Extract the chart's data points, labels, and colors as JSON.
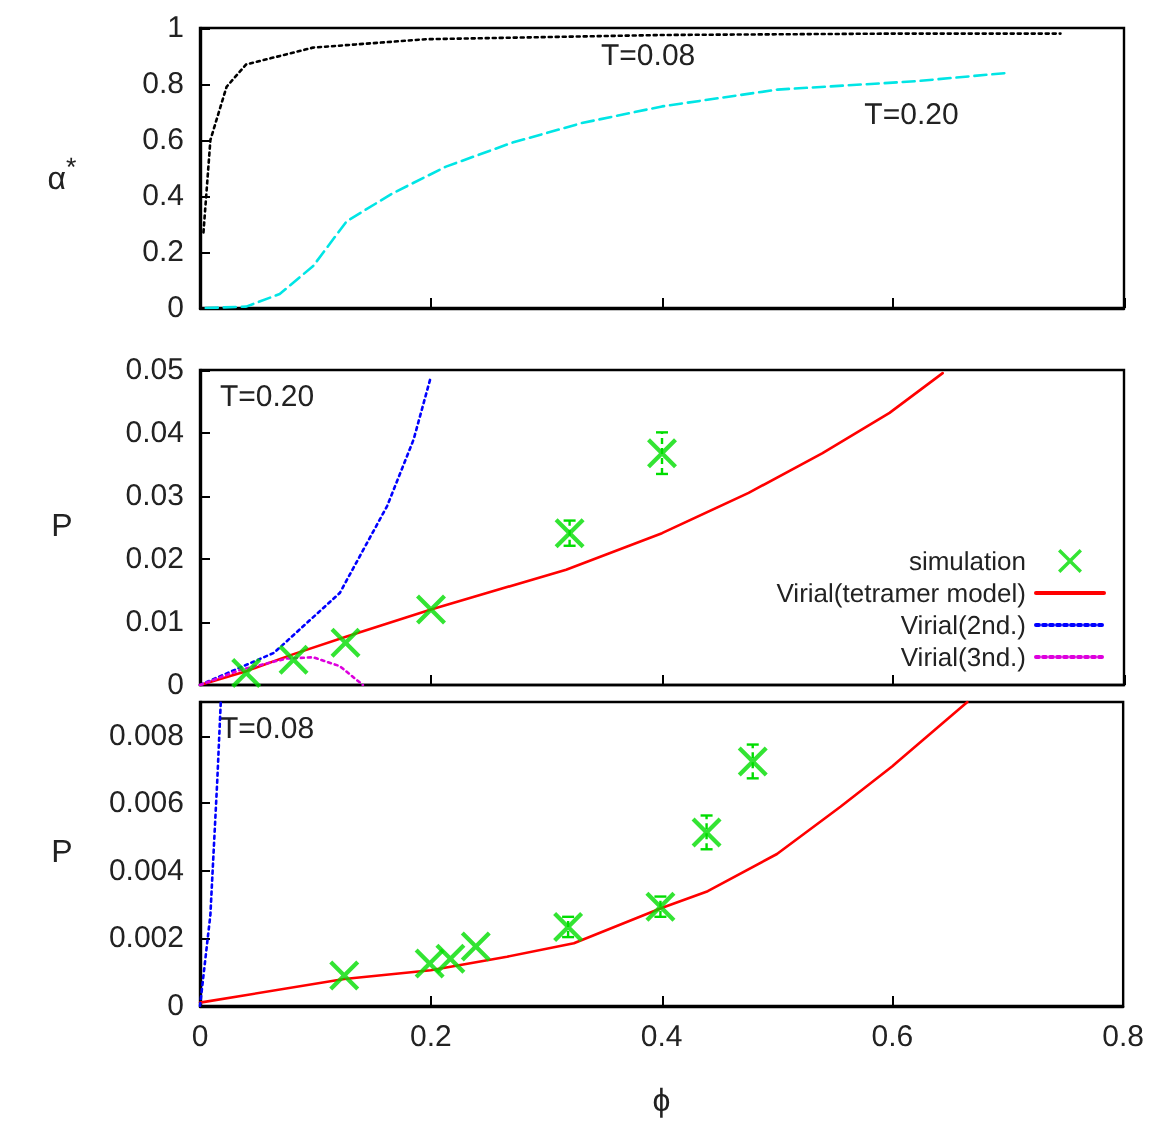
{
  "chart_data": [
    {
      "type": "line",
      "ylabel": "α$^{*}$",
      "xlim": [
        0,
        0.8
      ],
      "xticks": [
        0,
        0.2,
        0.4,
        0.6,
        0.8
      ],
      "ylim": [
        0,
        1
      ],
      "yticks": [
        0,
        0.2,
        0.4,
        0.6,
        0.8,
        1
      ],
      "tick_labels": "y",
      "grid": false,
      "series": [
        {
          "color": "#000000",
          "line_style": "dotted",
          "x": [
            0.003,
            0.009,
            0.023,
            0.04,
            0.098,
            0.196,
            0.4,
            0.6,
            0.745
          ],
          "values": [
            0.27,
            0.6,
            0.79,
            0.87,
            0.93,
            0.96,
            0.975,
            0.98,
            0.98
          ]
        },
        {
          "color": "#00e5e5",
          "line_style": "dashed",
          "x": [
            0.005,
            0.04,
            0.069,
            0.098,
            0.127,
            0.167,
            0.213,
            0.27,
            0.33,
            0.4,
            0.5,
            0.62,
            0.7
          ],
          "values": [
            0,
            0.005,
            0.05,
            0.15,
            0.31,
            0.41,
            0.505,
            0.59,
            0.66,
            0.72,
            0.78,
            0.81,
            0.84
          ]
        }
      ],
      "annotations": [
        "T=0.08",
        "T=0.20"
      ]
    },
    {
      "type": "line",
      "ylabel": "P",
      "xlim": [
        0,
        0.8
      ],
      "xticks": [
        0,
        0.2,
        0.4,
        0.6,
        0.8
      ],
      "ylim": [
        0,
        0.05
      ],
      "yticks": [
        0,
        0.01,
        0.02,
        0.03,
        0.04,
        0.05
      ],
      "tick_labels": "y",
      "grid": false,
      "legend": "bottom right",
      "annotations": [
        "T=0.20"
      ],
      "series": [
        {
          "name": "simulation",
          "type": "scatter",
          "marker": "cross",
          "color": "#00dd00",
          "x": [
            0.04,
            0.081,
            0.126,
            0.2,
            0.32,
            0.4
          ],
          "values": [
            0.0019,
            0.004,
            0.0067,
            0.012,
            0.0241,
            0.0368
          ],
          "errors": [
            null,
            null,
            null,
            null,
            0.002,
            0.0033
          ]
        },
        {
          "name": "Virial(tetramer model)",
          "color": "#ff0000",
          "line_style": "solid",
          "x": [
            0,
            0.04,
            0.081,
            0.127,
            0.2,
            0.317,
            0.4,
            0.475,
            0.539,
            0.597,
            0.643
          ],
          "values": [
            0,
            0.0022,
            0.0049,
            0.0077,
            0.012,
            0.0183,
            0.0241,
            0.0305,
            0.0368,
            0.0432,
            0.0495
          ]
        },
        {
          "name": "Virial(2nd.)",
          "color": "#0000ff",
          "line_style": "dotted",
          "x": [
            0,
            0.064,
            0.121,
            0.162,
            0.185,
            0.2
          ],
          "values": [
            0,
            0.0051,
            0.0146,
            0.0284,
            0.039,
            0.049
          ]
        },
        {
          "name": "Virial(3nd.)",
          "color": "#dd00dd",
          "line_style": "dotted",
          "x": [
            0,
            0.035,
            0.075,
            0.098,
            0.121,
            0.141
          ],
          "values": [
            0,
            0.0024,
            0.0042,
            0.0044,
            0.003,
            0
          ]
        }
      ]
    },
    {
      "type": "line",
      "ylabel": "P",
      "xlabel": "ϕ",
      "xlim": [
        0,
        0.8
      ],
      "xticks": [
        0,
        0.2,
        0.4,
        0.6,
        0.8
      ],
      "ylim": [
        0,
        0.009
      ],
      "yticks": [
        0,
        0.002,
        0.004,
        0.006,
        0.008
      ],
      "grid": false,
      "annotations": [
        "T=0.08"
      ],
      "series": [
        {
          "type": "scatter",
          "marker": "cross",
          "color": "#00dd00",
          "x": [
            0.125,
            0.199,
            0.217,
            0.239,
            0.319,
            0.399,
            0.439,
            0.479
          ],
          "values": [
            0.0009,
            0.00126,
            0.0014,
            0.00176,
            0.00234,
            0.00294,
            0.00514,
            0.00724
          ],
          "errors": [
            null,
            null,
            null,
            null,
            0.0003,
            0.0003,
            0.0005,
            0.0005
          ]
        },
        {
          "color": "#ff0000",
          "line_style": "solid",
          "x": [
            0,
            0.125,
            0.2,
            0.266,
            0.324,
            0.4,
            0.44,
            0.5,
            0.555,
            0.6,
            0.665
          ],
          "values": [
            0.0001,
            0.0008,
            0.00106,
            0.00146,
            0.00186,
            0.0029,
            0.0034,
            0.0045,
            0.0059,
            0.0071,
            0.009
          ]
        },
        {
          "color": "#0000ff",
          "line_style": "dotted",
          "x": [
            0,
            0.009,
            0.015,
            0.018
          ],
          "values": [
            0,
            0.0027,
            0.0067,
            0.009
          ]
        }
      ]
    }
  ]
}
